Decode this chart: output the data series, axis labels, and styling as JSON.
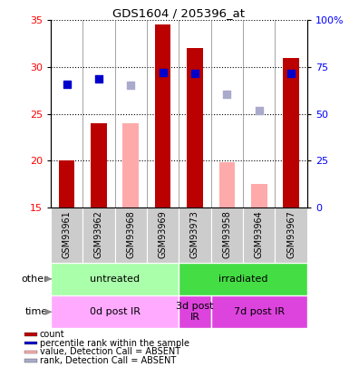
{
  "title": "GDS1604 / 205396_at",
  "samples": [
    "GSM93961",
    "GSM93962",
    "GSM93968",
    "GSM93969",
    "GSM93973",
    "GSM93958",
    "GSM93964",
    "GSM93967"
  ],
  "count_values": [
    20.0,
    24.0,
    null,
    34.5,
    32.0,
    null,
    null,
    31.0
  ],
  "count_absent_values": [
    null,
    null,
    24.0,
    null,
    null,
    19.8,
    17.5,
    null
  ],
  "rank_present_pct": [
    66.0,
    68.5,
    null,
    72.0,
    71.5,
    null,
    null,
    71.5
  ],
  "rank_absent_pct": [
    null,
    null,
    65.5,
    null,
    null,
    60.5,
    51.5,
    null
  ],
  "ylim_left": [
    15,
    35
  ],
  "ylim_right": [
    0,
    100
  ],
  "y_left_ticks": [
    15,
    20,
    25,
    30,
    35
  ],
  "y_right_ticks": [
    0,
    25,
    50,
    75,
    100
  ],
  "y_right_labels": [
    "0",
    "25",
    "50",
    "75",
    "100%"
  ],
  "bar_color_present": "#bb0000",
  "bar_color_absent": "#ffaaaa",
  "dot_color_present": "#0000cc",
  "dot_color_absent": "#aaaacc",
  "other_groups": [
    {
      "label": "untreated",
      "start": 0,
      "end": 4,
      "color": "#aaffaa"
    },
    {
      "label": "irradiated",
      "start": 4,
      "end": 8,
      "color": "#44dd44"
    }
  ],
  "time_groups": [
    {
      "label": "0d post IR",
      "start": 0,
      "end": 4,
      "color": "#ffaaff"
    },
    {
      "label": "3d post\nIR",
      "start": 4,
      "end": 5,
      "color": "#dd44dd"
    },
    {
      "label": "7d post IR",
      "start": 5,
      "end": 8,
      "color": "#dd44dd"
    }
  ],
  "legend_items": [
    {
      "color": "#bb0000",
      "label": "count"
    },
    {
      "color": "#0000cc",
      "label": "percentile rank within the sample"
    },
    {
      "color": "#ffaaaa",
      "label": "value, Detection Call = ABSENT"
    },
    {
      "color": "#aaaacc",
      "label": "rank, Detection Call = ABSENT"
    }
  ],
  "bar_width": 0.5,
  "dot_size": 28
}
